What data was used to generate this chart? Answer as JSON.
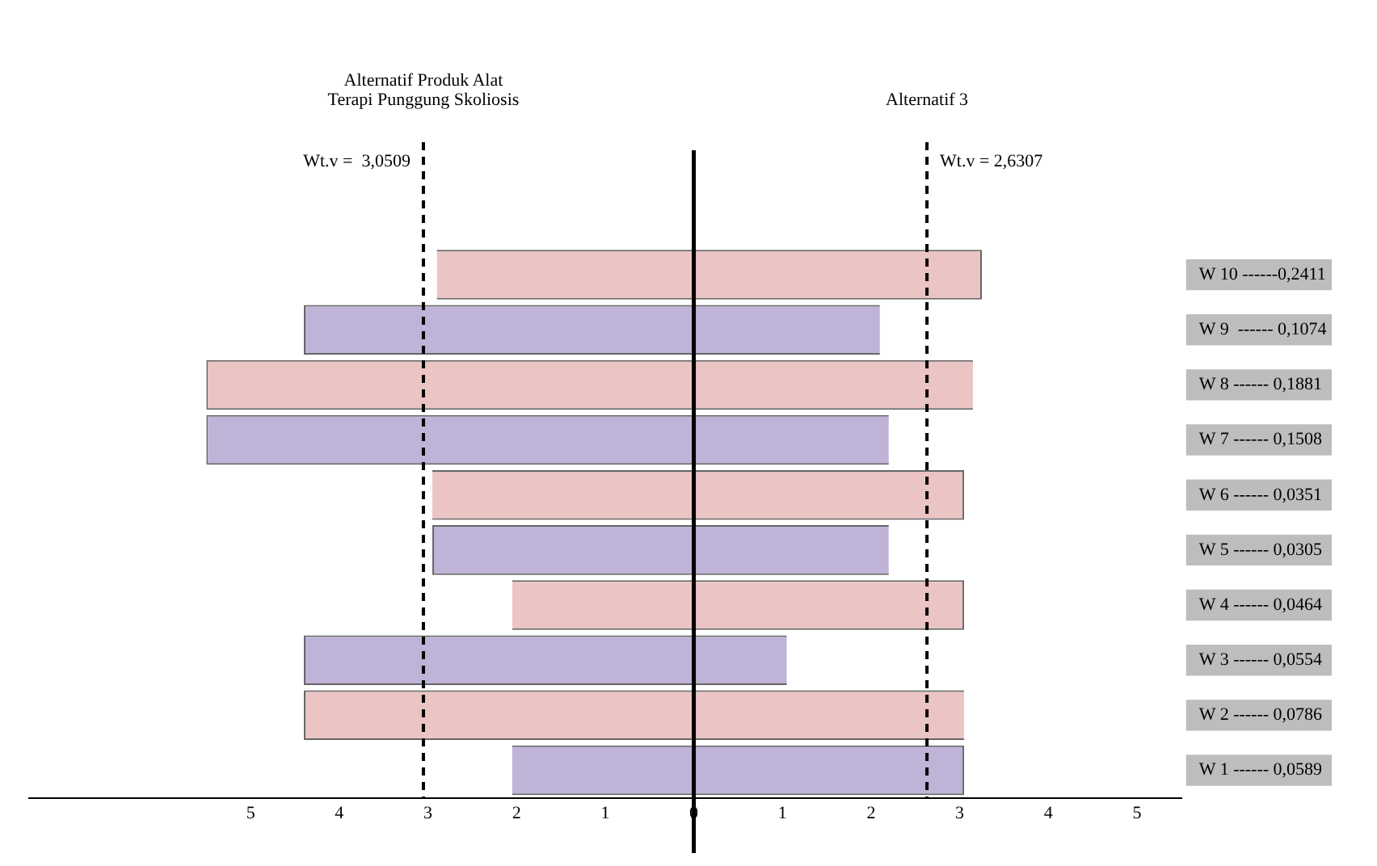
{
  "chart_data": {
    "type": "bar",
    "orientation": "horizontal",
    "categories": [
      "W 10 ------0,2411",
      "W 9  ------ 0,1074",
      "W 8 ------ 0,1881",
      "W 7 ------ 0,1508",
      "W 6 ------ 0,0351",
      "W 5 ------ 0,0305",
      "W 4 ------ 0,0464",
      "W 3 ------ 0,0554",
      "W 2 ------ 0,0786",
      "W 1 ------ 0,0589"
    ],
    "base": [
      -2.9,
      -4.4,
      -5.5,
      -5.5,
      -2.95,
      -2.95,
      -2.05,
      -4.4,
      -4.4,
      -2.05
    ],
    "values": [
      6.15,
      6.5,
      8.65,
      7.7,
      6,
      5.15,
      5.1,
      5.45,
      7.45,
      5.1
    ],
    "colors": [
      "#ebc4c4",
      "#bfb3d8",
      "#ebc4c4",
      "#bfb3d8",
      "#ebc4c4",
      "#bfb3d8",
      "#ebc4c4",
      "#bfb3d8",
      "#ebc4c4",
      "#bfb3d8"
    ],
    "xlim": [
      -7.5,
      5.5
    ],
    "xticks": [
      {
        "value": -5,
        "label": "5"
      },
      {
        "value": -4,
        "label": "4"
      },
      {
        "value": -3,
        "label": "3"
      },
      {
        "value": -2,
        "label": "2"
      },
      {
        "value": -1,
        "label": "1"
      },
      0,
      1,
      2,
      3,
      4,
      5
    ],
    "ref_lines": [
      {
        "axis": "x",
        "value": -3.0509,
        "label": "Alternatif Produk Alat\nTerapi Punggung Skoliosis",
        "line_style": "dashed"
      },
      {
        "axis": "x",
        "value": 2.6307,
        "label": "Alternatif 3",
        "line_style": "dashed"
      },
      {
        "axis": "x",
        "value": 0,
        "line_style": "solid"
      }
    ],
    "annotations": [
      {
        "text": "Wt.v =  3,0509",
        "x": -3.0509
      },
      {
        "text": "Wt.v = 2,6307",
        "x": 2.6307
      }
    ]
  }
}
